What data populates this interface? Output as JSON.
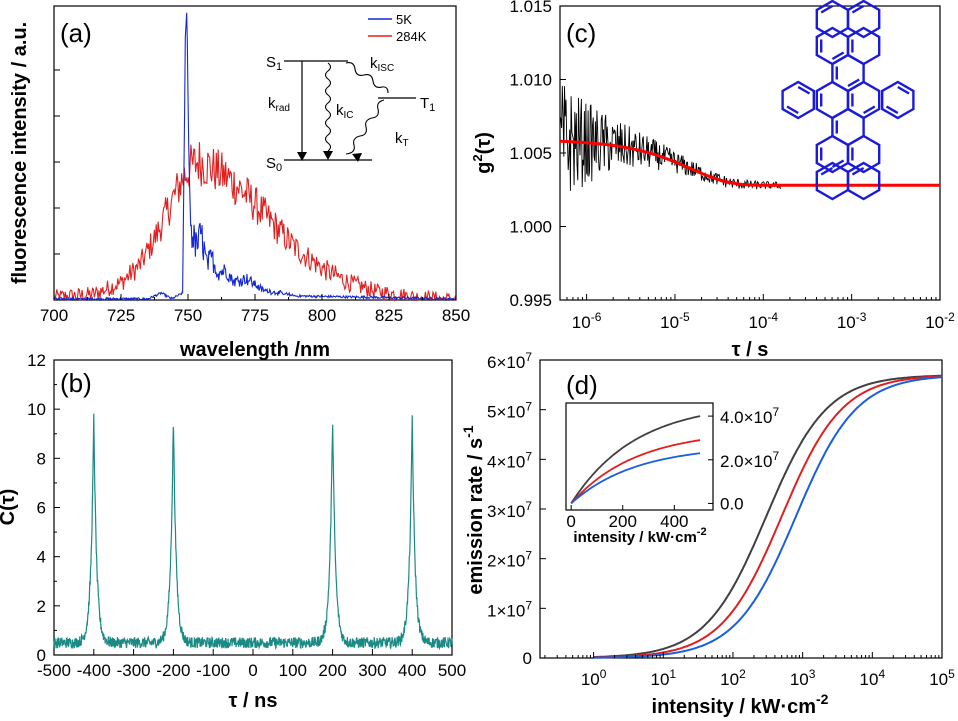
{
  "chart_data": [
    {
      "id": "a",
      "type": "line",
      "panel_label": "(a)",
      "xlabel": "wavelength /nm",
      "ylabel": "fluorescence intensity / a.u.",
      "xlim": [
        700,
        850
      ],
      "x_ticks": [
        "700",
        "725",
        "750",
        "775",
        "800",
        "825",
        "850"
      ],
      "series": [
        {
          "name": "5K",
          "color": "#1428d2",
          "points": [
            [
              700,
              0.0
            ],
            [
              735,
              0.0
            ],
            [
              740,
              0.02
            ],
            [
              744,
              0.0
            ],
            [
              748,
              0.02
            ],
            [
              749,
              0.9
            ],
            [
              749.6,
              1.0
            ],
            [
              750.2,
              0.55
            ],
            [
              751,
              0.25
            ],
            [
              753,
              0.18
            ],
            [
              755,
              0.22
            ],
            [
              757,
              0.12
            ],
            [
              759,
              0.14
            ],
            [
              761,
              0.09
            ],
            [
              764,
              0.1
            ],
            [
              767,
              0.06
            ],
            [
              772,
              0.07
            ],
            [
              778,
              0.03
            ],
            [
              790,
              0.01
            ],
            [
              850,
              0.0
            ]
          ]
        },
        {
          "name": "284K",
          "color": "#e02020",
          "points": [
            [
              700,
              0.01
            ],
            [
              715,
              0.02
            ],
            [
              725,
              0.06
            ],
            [
              732,
              0.12
            ],
            [
              738,
              0.22
            ],
            [
              743,
              0.32
            ],
            [
              747,
              0.4
            ],
            [
              750,
              0.45
            ],
            [
              754,
              0.48
            ],
            [
              758,
              0.46
            ],
            [
              765,
              0.42
            ],
            [
              772,
              0.36
            ],
            [
              780,
              0.28
            ],
            [
              790,
              0.18
            ],
            [
              800,
              0.11
            ],
            [
              810,
              0.06
            ],
            [
              820,
              0.03
            ],
            [
              835,
              0.01
            ],
            [
              850,
              0.0
            ]
          ]
        }
      ],
      "legend": {
        "placement": "top-right",
        "entries": [
          "5K",
          "284K"
        ]
      },
      "inset": {
        "type": "jablonski-diagram",
        "levels": [
          "S1",
          "S0",
          "T1"
        ],
        "rates": [
          "krad",
          "kIC",
          "kISC",
          "kT"
        ]
      }
    },
    {
      "id": "b",
      "type": "line",
      "panel_label": "(b)",
      "xlabel": "τ / ns",
      "ylabel": "C(τ)",
      "xlim": [
        -500,
        500
      ],
      "ylim": [
        0,
        12
      ],
      "x_ticks": [
        "-500",
        "-400",
        "-300",
        "-200",
        "-100",
        "0",
        "100",
        "200",
        "300",
        "400",
        "500"
      ],
      "y_ticks": [
        "0",
        "2",
        "4",
        "6",
        "8",
        "10",
        "12"
      ],
      "baseline": 0.5,
      "peaks": [
        {
          "x": -400,
          "y": 9.8
        },
        {
          "x": -200,
          "y": 9.8
        },
        {
          "x": 200,
          "y": 9.8
        },
        {
          "x": 400,
          "y": 9.7
        }
      ],
      "series": [
        {
          "color": "#1a8a85"
        }
      ]
    },
    {
      "id": "c",
      "type": "line",
      "panel_label": "(c)",
      "xlabel": "τ / s",
      "ylabel": "g2(τ)",
      "x_scale": "log",
      "xlim": [
        5e-07,
        0.01
      ],
      "ylim": [
        0.995,
        1.015
      ],
      "x_ticks": [
        "10",
        "10",
        "10",
        "10",
        "10"
      ],
      "x_tick_exps": [
        "-6",
        "-5",
        "-4",
        "-3",
        "-2"
      ],
      "y_ticks": [
        "0.995",
        "1.000",
        "1.005",
        "1.010",
        "1.015"
      ],
      "fit": {
        "color": "#ff0000",
        "plateau_start": 1.0059,
        "plateau_end": 1.0028,
        "tau": 1.5e-05
      },
      "data_color": "#000000",
      "inset": {
        "type": "molecule-structure",
        "color": "#1a1adc"
      }
    },
    {
      "id": "d",
      "type": "line",
      "panel_label": "(d)",
      "xlabel": "intensity / kW·cm",
      "xlabel_sup": "-2",
      "ylabel": "emission rate / s",
      "ylabel_sup": "-1",
      "x_scale": "log",
      "xlim": [
        0.17,
        100000
      ],
      "ylim": [
        0,
        60000000
      ],
      "x_ticks": [
        "10",
        "10",
        "10",
        "10",
        "10",
        "10"
      ],
      "x_tick_exps": [
        "0",
        "1",
        "2",
        "3",
        "4",
        "5"
      ],
      "y_ticks": [
        "0",
        "1×10",
        "2×10",
        "3×10",
        "4×10",
        "5×10",
        "6×10"
      ],
      "y_tick_exp": "7",
      "series": [
        {
          "color": "#404040",
          "I_sat": 300,
          "R_inf": 57000000
        },
        {
          "color": "#e02020",
          "I_sat": 500,
          "R_inf": 57000000
        },
        {
          "color": "#1a5fdc",
          "I_sat": 800,
          "R_inf": 57000000
        }
      ],
      "inset": {
        "xlabel": "intensity / kW·cm",
        "xlabel_sup": "-2",
        "xlim": [
          -20,
          550
        ],
        "x_ticks": [
          "0",
          "200",
          "400"
        ],
        "ylim": [
          -3000000,
          46000000
        ],
        "y_ticks": [
          "0.0",
          "2.0×10",
          "4.0×10"
        ],
        "y_tick_exp": "7",
        "series": [
          {
            "color": "#404040",
            "end_value": 40000000
          },
          {
            "color": "#e02020",
            "end_value": 29000000
          },
          {
            "color": "#1a5fdc",
            "end_value": 23000000
          }
        ]
      }
    }
  ]
}
